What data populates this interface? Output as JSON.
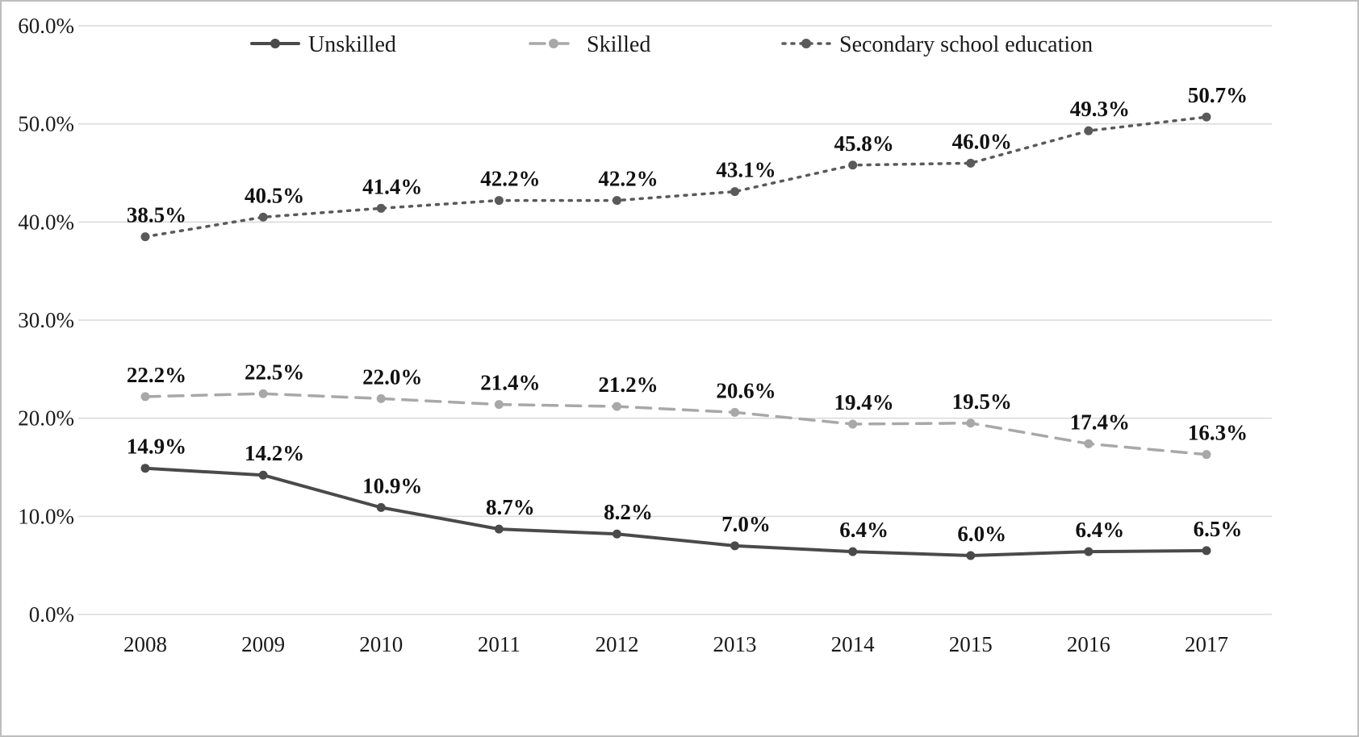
{
  "chart_data": {
    "type": "line",
    "x": [
      "2008",
      "2009",
      "2010",
      "2011",
      "2012",
      "2013",
      "2014",
      "2015",
      "2016",
      "2017"
    ],
    "series": [
      {
        "name": "Unskilled",
        "values": [
          14.9,
          14.2,
          10.9,
          8.7,
          8.2,
          7.0,
          6.4,
          6.0,
          6.4,
          6.5
        ],
        "labels": [
          "14.9%",
          "14.2%",
          "10.9%",
          "8.7%",
          "8.2%",
          "7.0%",
          "6.4%",
          "6.0%",
          "6.4%",
          "6.5%"
        ],
        "color": "#4a4a4a",
        "style": "solid"
      },
      {
        "name": "Skilled",
        "values": [
          22.2,
          22.5,
          22.0,
          21.4,
          21.2,
          20.6,
          19.4,
          19.5,
          17.4,
          16.3
        ],
        "labels": [
          "22.2%",
          "22.5%",
          "22.0%",
          "21.4%",
          "21.2%",
          "20.6%",
          "19.4%",
          "19.5%",
          "17.4%",
          "16.3%"
        ],
        "color": "#a8a8a8",
        "style": "dashed"
      },
      {
        "name": "Secondary school education",
        "values": [
          38.5,
          40.5,
          41.4,
          42.2,
          42.2,
          43.1,
          45.8,
          46.0,
          49.3,
          50.7
        ],
        "labels": [
          "38.5%",
          "40.5%",
          "41.4%",
          "42.2%",
          "42.2%",
          "43.1%",
          "45.8%",
          "46.0%",
          "49.3%",
          "50.7%"
        ],
        "color": "#5a5a5a",
        "style": "dotted"
      }
    ],
    "ylim": [
      0,
      60
    ],
    "ytick_step": 10,
    "ytick_labels": [
      "0.0%",
      "10.0%",
      "20.0%",
      "30.0%",
      "40.0%",
      "50.0%",
      "60.0%"
    ],
    "grid": true,
    "gridline_color": "#d9d9d9",
    "legend_position": "top",
    "data_label_color": "#111111",
    "xlabel": "",
    "ylabel": "",
    "title": ""
  }
}
